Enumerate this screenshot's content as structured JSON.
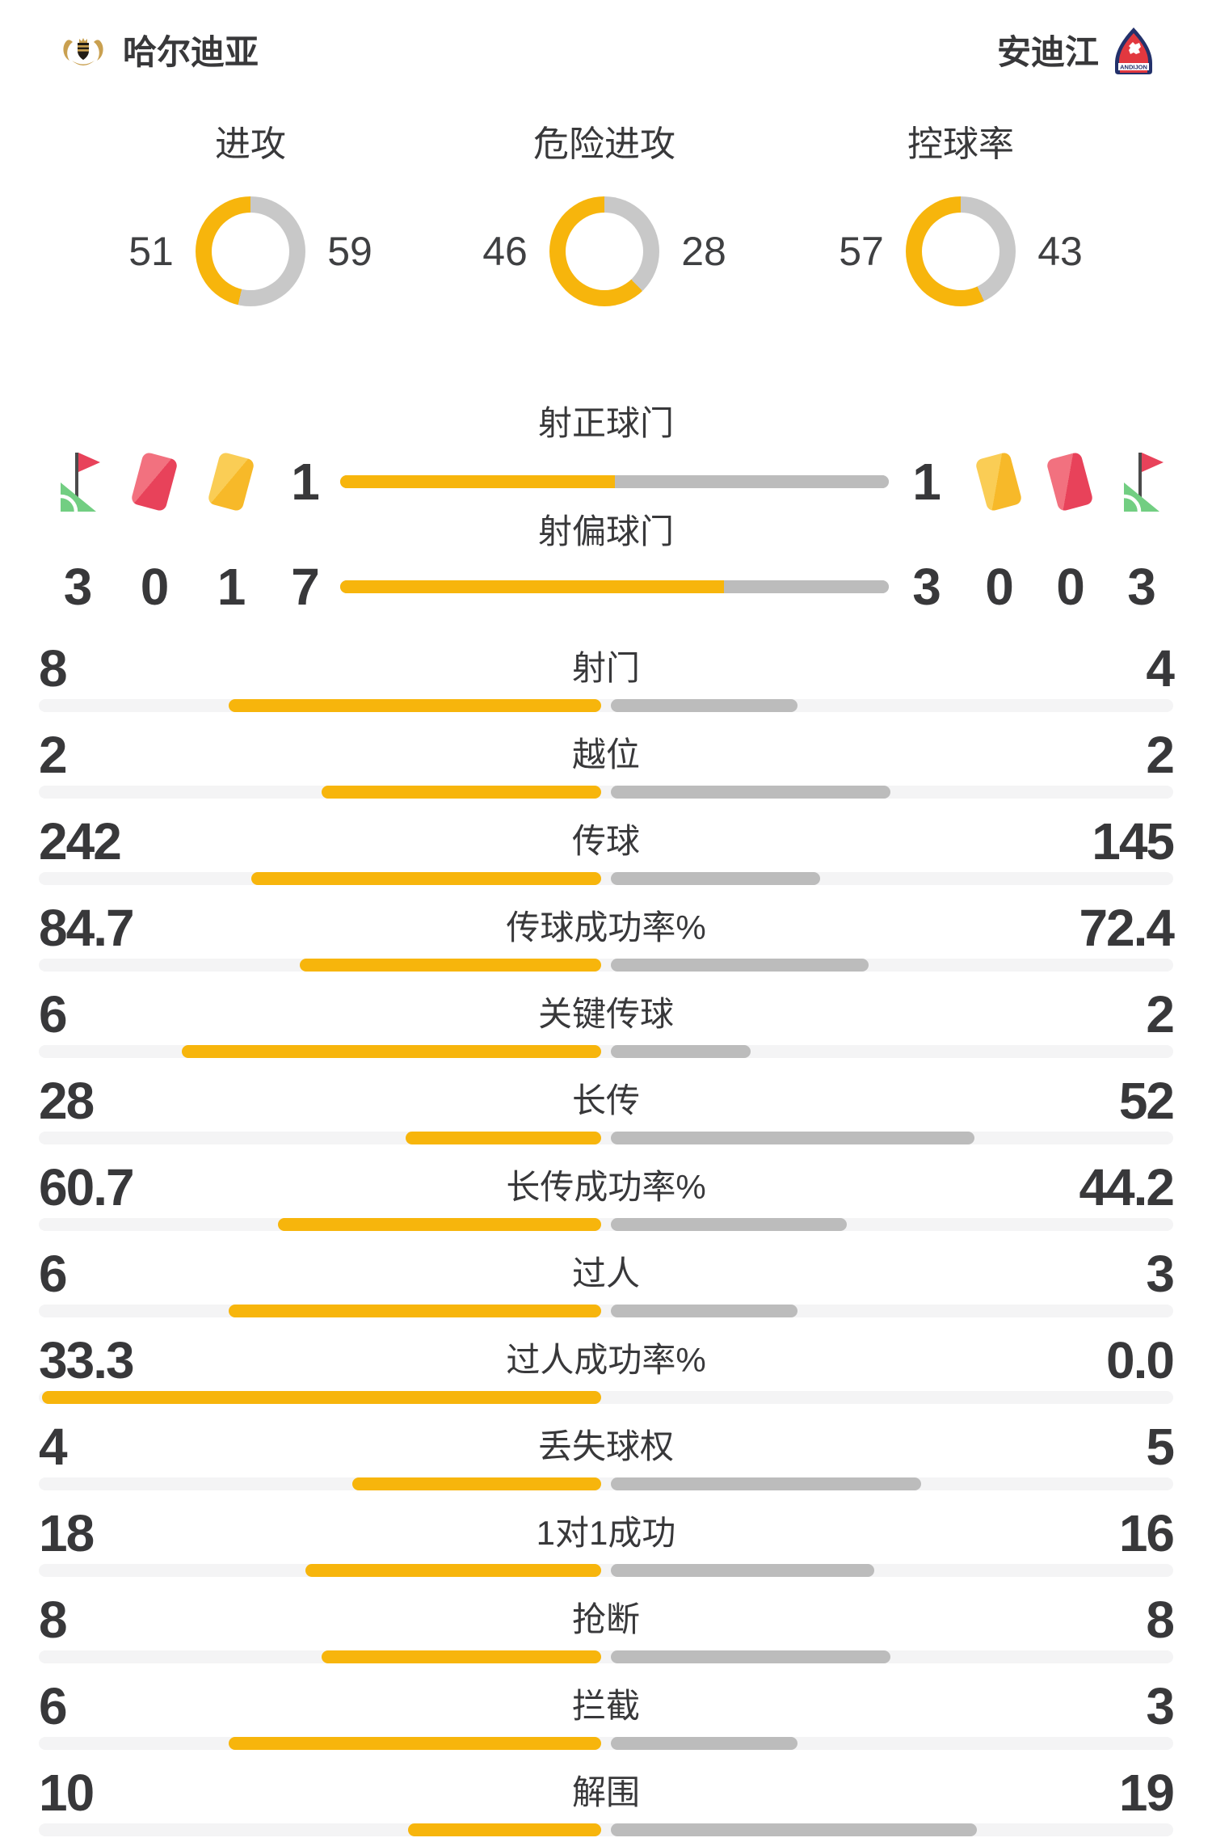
{
  "header": {
    "home": {
      "name": "哈尔迪亚"
    },
    "away": {
      "name": "安迪江",
      "logo_text": "ANDIJON"
    }
  },
  "colors": {
    "accent": "#F7B50C",
    "bar_gray": "#BCBCBC",
    "donut_gray": "#C8C8C8",
    "track": "#F4F4F5",
    "text": "#38383A",
    "red_card": "#E8425A",
    "yellow_card": "#F7B929",
    "flag_green": "#72CE82",
    "away_logo_navy": "#23316B",
    "away_logo_red": "#E2383F"
  },
  "donuts": [
    {
      "label": "进攻",
      "home": "51",
      "away": "59"
    },
    {
      "label": "危险进攻",
      "home": "46",
      "away": "28"
    },
    {
      "label": "控球率",
      "home": "57",
      "away": "43"
    }
  ],
  "shots": {
    "rows": [
      {
        "label": "射正球门",
        "home": "1",
        "away": "1"
      },
      {
        "label": "射偏球门",
        "home": "7",
        "away": "3"
      }
    ],
    "home_icons": [
      "corner-flag",
      "red-card",
      "yellow-card"
    ],
    "away_icons": [
      "yellow-card",
      "red-card",
      "corner-flag"
    ],
    "home_counts": [
      "3",
      "0",
      "1"
    ],
    "away_counts": [
      "0",
      "0",
      "3"
    ]
  },
  "stats": {
    "rows": [
      {
        "label": "射门",
        "home": "8",
        "away": "4"
      },
      {
        "label": "越位",
        "home": "2",
        "away": "2"
      },
      {
        "label": "传球",
        "home": "242",
        "away": "145"
      },
      {
        "label": "传球成功率%",
        "home": "84.7",
        "away": "72.4"
      },
      {
        "label": "关键传球",
        "home": "6",
        "away": "2"
      },
      {
        "label": "长传",
        "home": "28",
        "away": "52"
      },
      {
        "label": "长传成功率%",
        "home": "60.7",
        "away": "44.2"
      },
      {
        "label": "过人",
        "home": "6",
        "away": "3"
      },
      {
        "label": "过人成功率%",
        "home": "33.3",
        "away": "0.0"
      },
      {
        "label": "丢失球权",
        "home": "4",
        "away": "5"
      },
      {
        "label": "1对1成功",
        "home": "18",
        "away": "16"
      },
      {
        "label": "抢断",
        "home": "8",
        "away": "8"
      },
      {
        "label": "拦截",
        "home": "6",
        "away": "3"
      },
      {
        "label": "解围",
        "home": "10",
        "away": "19"
      }
    ]
  }
}
